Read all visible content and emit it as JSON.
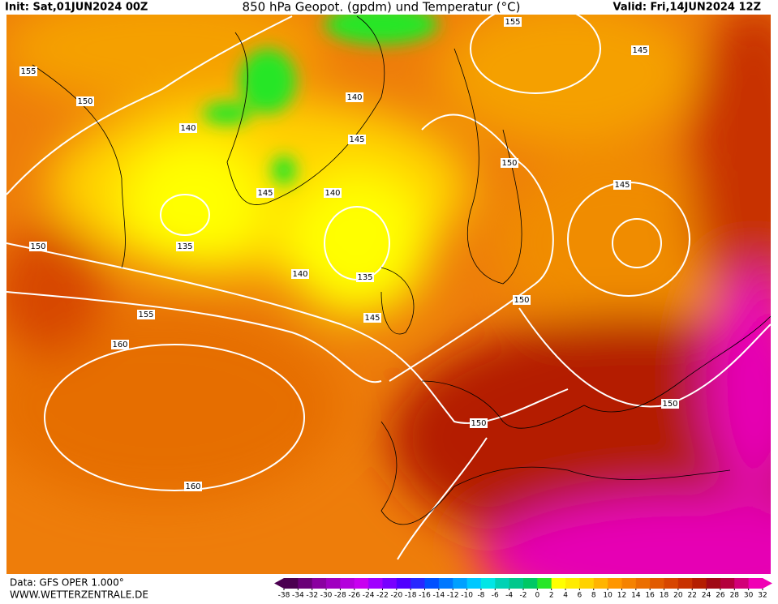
{
  "header": {
    "init": "Init: Sat,01JUN2024 00Z",
    "title": "850 hPa Geopot. (gpdm) und Temperatur (°C)",
    "valid": "Valid: Fri,14JUN2024 12Z"
  },
  "footer": {
    "data": "Data: GFS OPER 1.000°",
    "site": "WWW.WETTERZENTRALE.DE"
  },
  "contour_labels": [
    155,
    155,
    145,
    150,
    140,
    140,
    145,
    150,
    145,
    140,
    145,
    135,
    135,
    150,
    140,
    150,
    155,
    150,
    160,
    145,
    150,
    150,
    160
  ],
  "colorbar": {
    "ticks": [
      -38,
      -34,
      -32,
      -30,
      -28,
      -26,
      -24,
      -22,
      -20,
      -18,
      -16,
      -14,
      -12,
      -10,
      -8,
      -6,
      -4,
      -2,
      0,
      2,
      4,
      6,
      8,
      10,
      12,
      14,
      16,
      18,
      20,
      22,
      24,
      26,
      28,
      30,
      32
    ],
    "colors": [
      "#4b0050",
      "#6a0078",
      "#8a00a0",
      "#a000c0",
      "#b400dc",
      "#c800f0",
      "#a000ff",
      "#7800ff",
      "#5000ff",
      "#2828ff",
      "#0050ff",
      "#0078ff",
      "#00a0ff",
      "#00c8ff",
      "#00e6e6",
      "#00d2b4",
      "#00c88c",
      "#00c864",
      "#28e628",
      "#ffff00",
      "#ffeb00",
      "#ffd200",
      "#ffb400",
      "#ff9600",
      "#f58200",
      "#eb6e00",
      "#e15a00",
      "#d74600",
      "#c83200",
      "#b41e00",
      "#a00a14",
      "#b4003c",
      "#d20078",
      "#f000b4"
    ]
  }
}
